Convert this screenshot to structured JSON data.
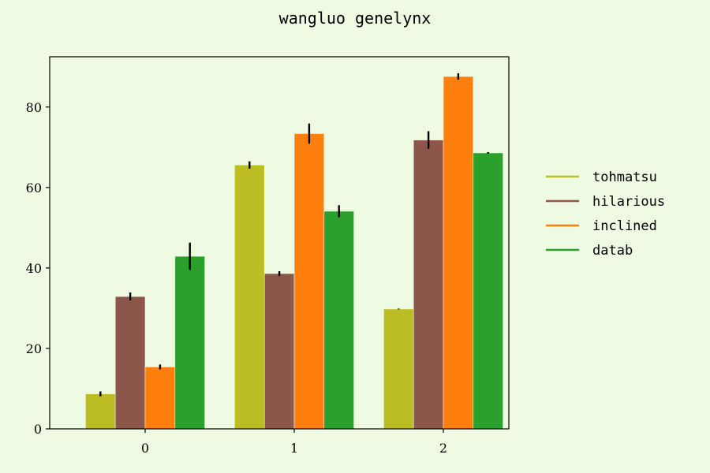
{
  "chart_data": {
    "type": "bar",
    "title": "wangluo genelynx",
    "xlabel": "",
    "ylabel": "",
    "categories": [
      "0",
      "1",
      "2"
    ],
    "ylim": [
      0,
      92.5
    ],
    "yticks": [
      "0",
      "20",
      "40",
      "60",
      "80"
    ],
    "grid": false,
    "legend_position": "right",
    "series": [
      {
        "name": "tohmatsu",
        "color": "#bcbd22",
        "values": [
          8.7,
          65.6,
          29.8
        ],
        "errors": [
          0.6,
          0.9,
          0.1
        ]
      },
      {
        "name": "hilarious",
        "color": "#8c564b",
        "values": [
          32.9,
          38.6,
          71.8
        ],
        "errors": [
          1.0,
          0.6,
          2.2
        ]
      },
      {
        "name": "inclined",
        "color": "#ff7f0e",
        "values": [
          15.4,
          73.4,
          87.6
        ],
        "errors": [
          0.6,
          2.5,
          0.8
        ]
      },
      {
        "name": "datab",
        "color": "#2ca02c",
        "values": [
          42.9,
          54.1,
          68.6
        ],
        "errors": [
          3.4,
          1.5,
          0.2
        ]
      }
    ]
  }
}
